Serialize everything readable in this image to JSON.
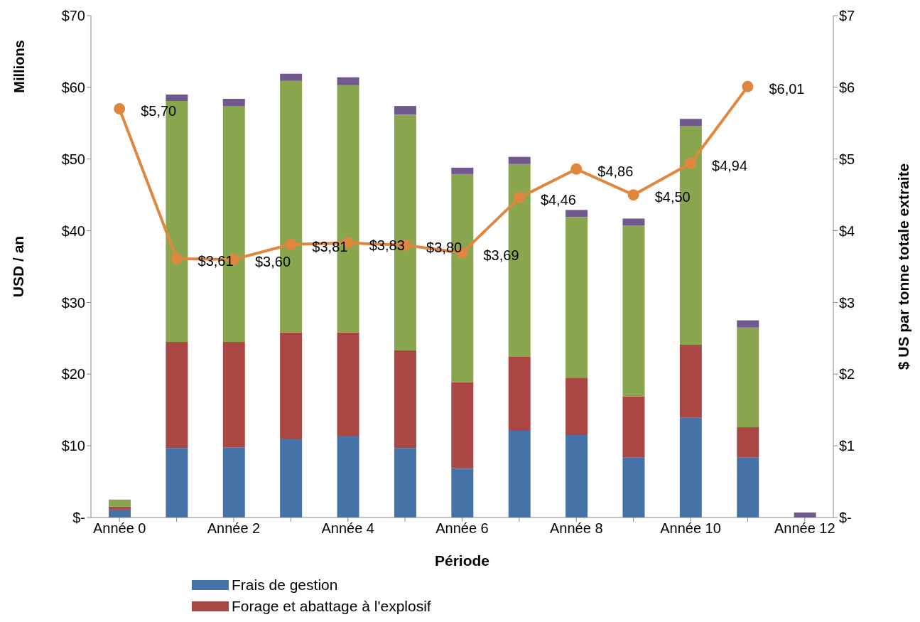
{
  "chart_data": {
    "type": "bar",
    "stacked": true,
    "xlabel": "Période",
    "ylabel": "USD / an",
    "y2label": "$ US par tonne totale extraite",
    "annotations": [
      "Millions"
    ],
    "categories": [
      "Année 0",
      null,
      "Année 2",
      null,
      "Année 4",
      null,
      "Année 6",
      null,
      "Année 8",
      null,
      "Année 10",
      null,
      "Année 12"
    ],
    "series": [
      {
        "name": "Frais de gestion",
        "color": "#4572a7",
        "values": [
          1.1,
          9.7,
          9.8,
          11.0,
          11.4,
          9.7,
          6.9,
          12.1,
          11.5,
          8.4,
          13.9,
          8.4,
          null
        ]
      },
      {
        "name": "Forage et abattage à l'explosif",
        "color": "#aa4643",
        "values": [
          0.4,
          14.8,
          14.7,
          14.8,
          14.4,
          13.6,
          12.0,
          10.3,
          8.0,
          8.5,
          10.2,
          4.2,
          null
        ]
      },
      {
        "color": "#89a54e",
        "values": [
          1.0,
          33.6,
          32.9,
          35.1,
          34.5,
          32.9,
          29.0,
          26.9,
          22.4,
          23.8,
          30.5,
          13.9,
          null
        ]
      },
      {
        "color": "#71588f",
        "values": [
          null,
          0.9,
          1.0,
          1.0,
          1.1,
          1.2,
          0.9,
          1.0,
          1.0,
          1.0,
          1.0,
          1.0,
          0.7
        ]
      },
      {
        "type": "line",
        "axis": "y2",
        "color": "#e0873f",
        "marker": "circle",
        "values": [
          5.7,
          3.61,
          3.6,
          3.81,
          3.83,
          3.8,
          3.69,
          4.46,
          4.86,
          4.5,
          4.94,
          6.01,
          null
        ],
        "value_labels": [
          "$5,70",
          "$3,61",
          "$3,60",
          "$3,81",
          "$3,83",
          "$3,80",
          "$3,69",
          "$4,46",
          "$4,86",
          "$4,50",
          "$4,94",
          "$6,01",
          null
        ]
      }
    ],
    "ylim": [
      0,
      70
    ],
    "yticks": [
      {
        "value": 0,
        "label": "$-"
      },
      {
        "value": 10,
        "label": "$10"
      },
      {
        "value": 20,
        "label": "$20"
      },
      {
        "value": 30,
        "label": "$30"
      },
      {
        "value": 40,
        "label": "$40"
      },
      {
        "value": 50,
        "label": "$50"
      },
      {
        "value": 60,
        "label": "$60"
      },
      {
        "value": 70,
        "label": "$70"
      }
    ],
    "y2lim": [
      0,
      7
    ],
    "y2ticks": [
      {
        "value": 0,
        "label": "$-"
      },
      {
        "value": 1,
        "label": "$1"
      },
      {
        "value": 2,
        "label": "$2"
      },
      {
        "value": 3,
        "label": "$3"
      },
      {
        "value": 4,
        "label": "$4"
      },
      {
        "value": 5,
        "label": "$5"
      },
      {
        "value": 6,
        "label": "$6"
      },
      {
        "value": 7,
        "label": "$7"
      }
    ],
    "grid": false,
    "legend": "bottom"
  }
}
